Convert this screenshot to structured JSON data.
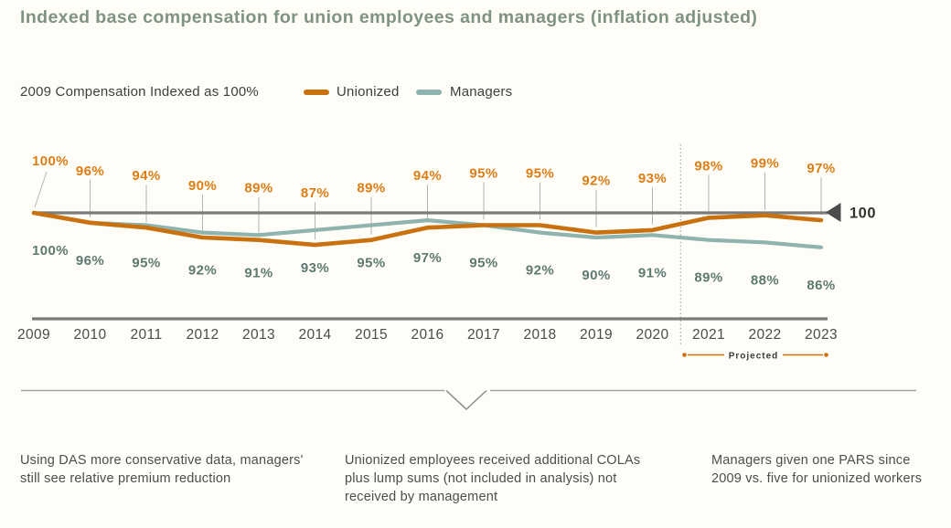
{
  "title": "Indexed base compensation for union employees and managers (inflation adjusted)",
  "legend": {
    "axis_note": "2009 Compensation Indexed as 100%"
  },
  "chart_data": {
    "type": "line",
    "categories": [
      "2009",
      "2010",
      "2011",
      "2012",
      "2013",
      "2014",
      "2015",
      "2016",
      "2017",
      "2018",
      "2019",
      "2020",
      "2021",
      "2022",
      "2023"
    ],
    "series": [
      {
        "name": "Unionized",
        "color": "#c9700f",
        "label_color": "#dd7d15",
        "values": [
          100,
          96,
          94,
          90,
          89,
          87,
          89,
          94,
          95,
          95,
          92,
          93,
          98,
          99,
          97
        ]
      },
      {
        "name": "Managers",
        "color": "#8fb3af",
        "label_color": "#5d7a72",
        "values": [
          100,
          96,
          95,
          92,
          91,
          93,
          95,
          97,
          95,
          92,
          90,
          91,
          89,
          88,
          86
        ]
      }
    ],
    "value_suffix": "%",
    "reference_line": {
      "value": 100,
      "label": "100"
    },
    "projected": {
      "label": "Projected",
      "start_category": "2021",
      "end_category": "2023"
    },
    "ylabel": "",
    "xlabel": "",
    "grid": false,
    "legend_position": "top"
  },
  "footnotes": [
    "Using DAS more conservative data, managers' still see relative premium reduction",
    "Unionized employees received additional COLAs plus lump sums (not included in analysis) not received by management",
    "Managers given one PARS since 2009 vs. five for unionized workers"
  ],
  "colors": {
    "title": "#7e9380",
    "unionized": "#c9700f",
    "managers": "#8fb3af",
    "reference_gray": "#7b7b79",
    "text_dark": "#3e3e3e"
  }
}
